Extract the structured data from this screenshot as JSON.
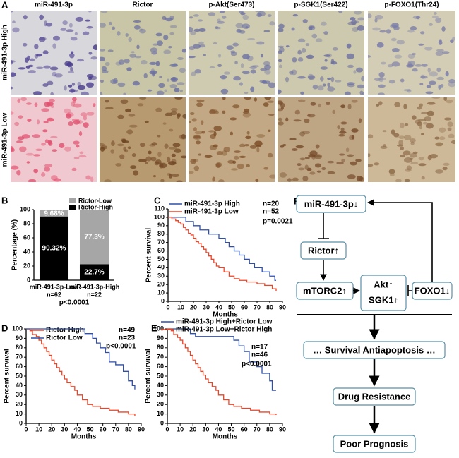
{
  "panel_a": {
    "label": "A",
    "column_titles": [
      "miR-491-3p",
      "Rictor",
      "p-Akt(Ser473)",
      "p-SGK1(Ser422)",
      "p-FOXO1(Thr24)"
    ],
    "row_titles": [
      "miR-491-3p High",
      "miR-491-3p Low"
    ]
  },
  "chart_data": [
    {
      "type": "bar",
      "label": "B",
      "stacked": true,
      "ylabel": "Percentage (%)",
      "categories": [
        "miR-491-3p-Low",
        "miR-491-3p-High"
      ],
      "category_notes": [
        "n=62",
        "n=22"
      ],
      "annotation": "p<0.0001",
      "series": [
        {
          "name": "Rictor-High",
          "color": "#000000",
          "values": [
            90.32,
            22.7
          ],
          "value_labels": [
            "90.32%",
            "22.7%"
          ]
        },
        {
          "name": "Rictor-Low",
          "color": "#a6a6a6",
          "values": [
            9.68,
            77.3
          ],
          "value_labels": [
            "9.68%",
            "77.3%"
          ]
        }
      ],
      "ylim": [
        0,
        100
      ],
      "yticks": [
        0,
        20,
        40,
        60,
        80,
        100
      ]
    },
    {
      "type": "line",
      "label": "C",
      "step": true,
      "xlabel": "Months",
      "ylabel": "Percent survival",
      "annotation": "p=0.0021",
      "xlim": [
        0,
        90
      ],
      "xticks": [
        0,
        10,
        20,
        30,
        40,
        50,
        60,
        70,
        80,
        90
      ],
      "ylim": [
        0,
        110
      ],
      "yticks": [
        0,
        10,
        20,
        30,
        40,
        50,
        60,
        70,
        80,
        90,
        100,
        110
      ],
      "series": [
        {
          "name": "miR-491-3p High",
          "n": "n=20",
          "color": "#2f4ea8",
          "x": [
            0,
            14,
            20,
            25,
            32,
            40,
            45,
            48,
            52,
            56,
            60,
            64,
            68,
            74,
            80,
            84,
            85
          ],
          "values": [
            100,
            95,
            90,
            85,
            80,
            75,
            70,
            65,
            60,
            55,
            50,
            45,
            40,
            35,
            30,
            25,
            25
          ]
        },
        {
          "name": "miR-491-3p Low",
          "n": "n=52",
          "color": "#e8462a",
          "x": [
            0,
            3,
            6,
            8,
            10,
            12,
            14,
            16,
            18,
            20,
            22,
            24,
            26,
            28,
            30,
            32,
            34,
            36,
            38,
            40,
            44,
            48,
            52,
            56,
            62,
            70,
            76,
            82,
            85
          ],
          "values": [
            100,
            98,
            96,
            94,
            92,
            88,
            85,
            81,
            79,
            75,
            71,
            69,
            65,
            62,
            58,
            54,
            50,
            46,
            42,
            40,
            35,
            30,
            27,
            25,
            23,
            21,
            19,
            15,
            12
          ]
        }
      ]
    },
    {
      "type": "line",
      "label": "D",
      "step": true,
      "xlabel": "Months",
      "ylabel": "Percent survival",
      "annotation": "p<0.0001",
      "xlim": [
        0,
        90
      ],
      "xticks": [
        0,
        10,
        20,
        30,
        40,
        50,
        60,
        70,
        80,
        90
      ],
      "ylim": [
        0,
        100
      ],
      "yticks": [
        0,
        10,
        20,
        30,
        40,
        50,
        60,
        70,
        80,
        90,
        100
      ],
      "series": [
        {
          "name": "Rictor High",
          "n": "n=49",
          "color": "#e8462a",
          "x": [
            0,
            3,
            5,
            8,
            10,
            12,
            14,
            16,
            18,
            20,
            22,
            24,
            26,
            28,
            30,
            32,
            35,
            38,
            40,
            44,
            48,
            52,
            58,
            65,
            72,
            80,
            85
          ],
          "values": [
            100,
            98,
            94,
            92,
            88,
            84,
            80,
            76,
            72,
            67,
            63,
            59,
            55,
            51,
            47,
            43,
            39,
            35,
            30,
            25,
            20,
            18,
            16,
            14,
            12,
            10,
            8
          ]
        },
        {
          "name": "Rictor Low",
          "n": "n=23",
          "color": "#2f4ea8",
          "x": [
            0,
            46,
            52,
            55,
            58,
            62,
            65,
            70,
            76,
            80,
            83,
            85
          ],
          "values": [
            100,
            95,
            90,
            85,
            80,
            75,
            65,
            62,
            55,
            45,
            40,
            36
          ]
        }
      ]
    },
    {
      "type": "line",
      "label": "E",
      "step": true,
      "xlabel": "Months",
      "ylabel": "Percent survival",
      "annotation": "p<0.0001",
      "xlim": [
        0,
        90
      ],
      "xticks": [
        0,
        10,
        20,
        30,
        40,
        50,
        60,
        70,
        80,
        90
      ],
      "ylim": [
        0,
        100
      ],
      "yticks": [
        0,
        10,
        20,
        30,
        40,
        50,
        60,
        70,
        80,
        90,
        100
      ],
      "series": [
        {
          "name": "miR-491-3p High+Rictor Low",
          "n": "n=17",
          "color": "#2f4ea8",
          "x": [
            0,
            18,
            22,
            52,
            56,
            60,
            64,
            70,
            74,
            80,
            82,
            85
          ],
          "values": [
            100,
            95,
            92,
            88,
            82,
            76,
            65,
            60,
            53,
            45,
            35,
            35
          ]
        },
        {
          "name": "miR-491-3p Low+Rictor High",
          "n": "n=46",
          "color": "#e8462a",
          "x": [
            0,
            3,
            5,
            8,
            10,
            12,
            14,
            16,
            18,
            20,
            22,
            24,
            26,
            28,
            30,
            32,
            35,
            38,
            40,
            44,
            48,
            52,
            58,
            65,
            72,
            80,
            85
          ],
          "values": [
            100,
            98,
            94,
            91,
            88,
            84,
            80,
            76,
            72,
            67,
            63,
            59,
            55,
            51,
            47,
            43,
            39,
            35,
            30,
            25,
            20,
            18,
            16,
            14,
            12,
            10,
            9
          ]
        }
      ]
    }
  ],
  "panel_f": {
    "label": "F",
    "nodes": [
      "miR-491-3p↓",
      "Rictor↑",
      "mTORC2↑",
      "Akt↑",
      "SGK1↑",
      "FOXO1↓",
      "… Survival   Antiapoptosis …",
      "Drug Resistance",
      "Poor Prognosis"
    ]
  }
}
